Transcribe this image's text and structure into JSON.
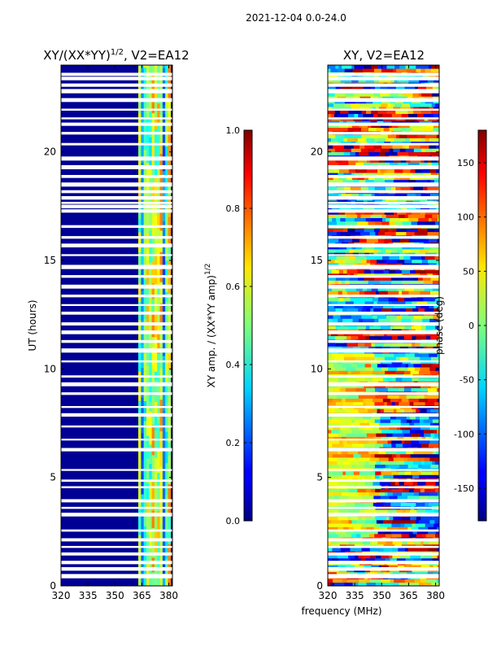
{
  "figure_title": "2021-12-04 0.0-24.0",
  "chart_data": [
    {
      "type": "heatmap",
      "title": "XY/(XX*YY)^1/2, V2=EA12",
      "title_main": "XY/(XX*YY)",
      "title_exp": "1/2",
      "title_suffix": ", V2=EA12",
      "xlabel": "",
      "ylabel": "UT (hours)",
      "xlim": [
        320,
        382
      ],
      "ylim": [
        0,
        24
      ],
      "xticks": [
        320,
        335,
        350,
        365,
        380
      ],
      "yticks": [
        0,
        5,
        10,
        15,
        20
      ],
      "colormap": "jet",
      "colorbar": {
        "label_main": "XY amp. / (XX*YY amp)",
        "label_exp": "1/2",
        "range": [
          0.0,
          1.0
        ],
        "ticks": [
          "0.0",
          "0.2",
          "0.4",
          "0.6",
          "0.8",
          "1.0"
        ]
      },
      "regions": [
        {
          "freq_range": [
            320,
            363
          ],
          "value": 0.02,
          "description": "low amplitude"
        },
        {
          "freq_range": [
            363,
            380
          ],
          "value": 0.45,
          "description": "elevated amplitude (cyan/green stripes)"
        }
      ]
    },
    {
      "type": "heatmap",
      "title": "XY, V2=EA12",
      "xlabel": "frequency (MHz)",
      "ylabel": "",
      "xlim": [
        320,
        382
      ],
      "ylim": [
        0,
        24
      ],
      "xticks": [
        320,
        335,
        350,
        365,
        380
      ],
      "yticks": [
        0,
        5,
        10,
        15,
        20
      ],
      "colormap": "jet",
      "colorbar": {
        "label": "phase (deg)",
        "range": [
          -180,
          180
        ],
        "ticks": [
          "-150",
          "-100",
          "-50",
          "0",
          "50",
          "100",
          "150"
        ]
      }
    }
  ]
}
